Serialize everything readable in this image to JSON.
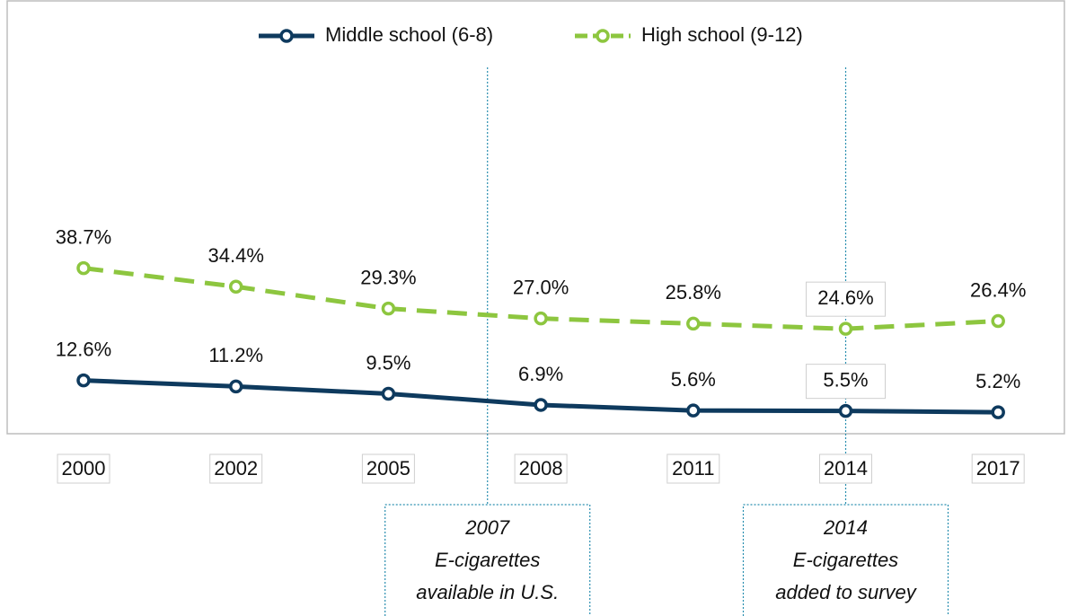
{
  "chart_data": {
    "type": "line",
    "categories": [
      "2000",
      "2002",
      "2005",
      "2008",
      "2011",
      "2014",
      "2017"
    ],
    "series": [
      {
        "name": "Middle school (6-8)",
        "color": "#0e3a5e",
        "dashed": false,
        "values": [
          12.6,
          11.2,
          9.5,
          6.9,
          5.6,
          5.5,
          5.2
        ],
        "value_labels": [
          "12.6%",
          "11.2%",
          "9.5%",
          "6.9%",
          "5.6%",
          "5.5%",
          "5.2%"
        ]
      },
      {
        "name": "High school (9-12)",
        "color": "#8dc63f",
        "dashed": true,
        "values": [
          38.7,
          34.4,
          29.3,
          27.0,
          25.8,
          24.6,
          26.4
        ],
        "value_labels": [
          "38.7%",
          "34.4%",
          "29.3%",
          "27.0%",
          "25.8%",
          "24.6%",
          "26.4%"
        ]
      }
    ],
    "ylim": [
      0,
      100
    ],
    "legend": "top",
    "annotations": [
      {
        "lines": [
          "2007",
          "E-cigarettes",
          "available in U.S."
        ]
      },
      {
        "lines": [
          "2014",
          "E-cigarettes",
          "added to survey"
        ]
      }
    ]
  }
}
